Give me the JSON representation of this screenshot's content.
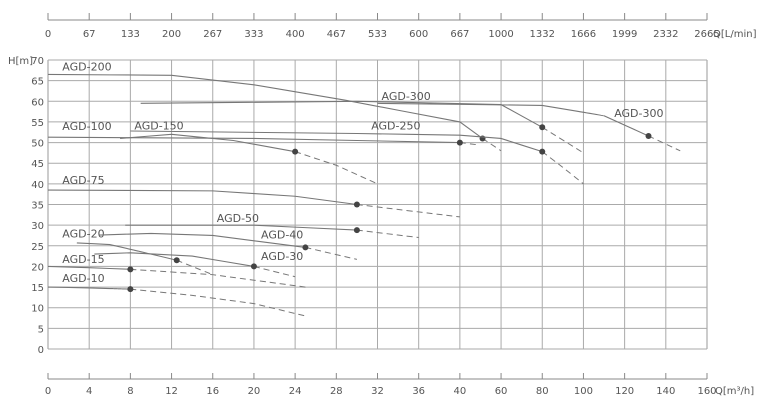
{
  "chart_data": {
    "type": "line",
    "title": "",
    "xlabel": "Q[m³/h]",
    "x2label": "Q[L/min]",
    "ylabel": "H[m]",
    "xticks": [
      0,
      4,
      8,
      12,
      16,
      20,
      24,
      28,
      32,
      36,
      40,
      60,
      80,
      100,
      120,
      140,
      160
    ],
    "xticks_top": [
      "0",
      "67",
      "133",
      "200",
      "267",
      "333",
      "400",
      "467",
      "533",
      "600",
      "667",
      "1000",
      "1332",
      "1666",
      "1999",
      "2332",
      "2665"
    ],
    "yticks": [
      0,
      5,
      10,
      15,
      20,
      25,
      30,
      35,
      40,
      45,
      50,
      55,
      60,
      65,
      70
    ],
    "ylim": [
      0,
      70
    ],
    "x_scale": "piecewise-linear (0-40 step 4, 40-160 step 20)",
    "grid": true,
    "line_color": "#777777",
    "series": [
      {
        "name": "AGD-10",
        "solid": [
          [
            0,
            15
          ],
          [
            4,
            14.8
          ],
          [
            8,
            14.5
          ]
        ],
        "point": [
          8,
          14.5
        ],
        "dashed": [
          [
            8,
            14.5
          ],
          [
            14,
            13
          ],
          [
            20,
            11
          ],
          [
            25,
            8
          ]
        ],
        "label_at": [
          1,
          16.2
        ]
      },
      {
        "name": "AGD-15",
        "solid": [
          [
            0,
            20
          ],
          [
            4,
            19.7
          ],
          [
            8,
            19.3
          ]
        ],
        "point": [
          8,
          19.3
        ],
        "dashed": [
          [
            8,
            19.3
          ],
          [
            16,
            18
          ],
          [
            25,
            15
          ]
        ],
        "label_at": [
          1,
          20.8
        ]
      },
      {
        "name": "AGD-20",
        "solid": [
          [
            2.8,
            25.7
          ],
          [
            6,
            25.3
          ],
          [
            10,
            23
          ],
          [
            12.5,
            21.5
          ]
        ],
        "point": [
          12.5,
          21.5
        ],
        "dashed": [
          [
            12.5,
            21.5
          ],
          [
            14,
            20
          ],
          [
            16,
            18
          ]
        ],
        "label_at": [
          1,
          27
        ]
      },
      {
        "name": "AGD-30",
        "solid": [
          [
            4.5,
            23
          ],
          [
            8,
            23.3
          ],
          [
            14,
            22.5
          ],
          [
            20,
            20
          ]
        ],
        "point": [
          20,
          20
        ],
        "dashed": [
          [
            20,
            20
          ],
          [
            24,
            17.5
          ]
        ],
        "label_at": [
          20.3,
          21.5
        ]
      },
      {
        "name": "AGD-40",
        "solid": [
          [
            5,
            27.6
          ],
          [
            10,
            28
          ],
          [
            16,
            27.5
          ],
          [
            25,
            24.6
          ]
        ],
        "point": [
          25,
          24.6
        ],
        "dashed": [
          [
            25,
            24.6
          ],
          [
            30,
            21.7
          ]
        ],
        "label_at": [
          20.3,
          26.8
        ]
      },
      {
        "name": "AGD-50",
        "solid": [
          [
            7.5,
            30
          ],
          [
            20,
            30
          ],
          [
            30,
            28.8
          ]
        ],
        "point": [
          30,
          28.8
        ],
        "dashed": [
          [
            30,
            28.8
          ],
          [
            36,
            27
          ]
        ],
        "label_at": [
          16,
          30.8
        ]
      },
      {
        "name": "AGD-75",
        "solid": [
          [
            0,
            38.5
          ],
          [
            16,
            38.3
          ],
          [
            24,
            37
          ],
          [
            30,
            35
          ]
        ],
        "point": [
          30,
          35
        ],
        "dashed": [
          [
            30,
            35
          ],
          [
            40,
            32
          ]
        ],
        "label_at": [
          1,
          40
        ]
      },
      {
        "name": "AGD-100",
        "solid": [
          [
            0,
            51.3
          ],
          [
            20,
            51
          ],
          [
            40,
            50
          ]
        ],
        "point": [
          40,
          50
        ],
        "dashed": [
          [
            40,
            50
          ],
          [
            48,
            49.5
          ]
        ],
        "label_at": [
          1,
          53
        ]
      },
      {
        "name": "AGD-150",
        "solid": [
          [
            7,
            51
          ],
          [
            12,
            52
          ],
          [
            18,
            50.5
          ],
          [
            24,
            47.8
          ]
        ],
        "point": [
          24,
          47.8
        ],
        "dashed": [
          [
            24,
            47.8
          ],
          [
            28,
            44.5
          ],
          [
            32,
            40
          ]
        ],
        "label_at": [
          8,
          53.2
        ]
      },
      {
        "name": "AGD-200",
        "solid": [
          [
            0,
            66.5
          ],
          [
            12,
            66.3
          ],
          [
            20,
            64
          ],
          [
            28.8,
            60.3
          ],
          [
            40,
            55
          ],
          [
            51,
            51
          ]
        ],
        "point": [
          51,
          51
        ],
        "dashed": [
          [
            51,
            51
          ],
          [
            60,
            48
          ]
        ],
        "label_at": [
          1,
          67.5
        ]
      },
      {
        "name": "AGD-250",
        "solid": [
          [
            8,
            52.8
          ],
          [
            30,
            52.2
          ],
          [
            40,
            51.8
          ],
          [
            60,
            51
          ],
          [
            80,
            47.8
          ]
        ],
        "point": [
          80,
          47.8
        ],
        "dashed": [
          [
            80,
            47.8
          ],
          [
            90,
            44
          ],
          [
            100,
            40
          ]
        ],
        "label_at": [
          31,
          53.2
        ]
      },
      {
        "name": "AGD-300",
        "solid": [
          [
            9,
            59.5
          ],
          [
            30,
            60
          ],
          [
            60,
            59.2
          ],
          [
            80,
            53.7
          ]
        ],
        "point": [
          80,
          53.7
        ],
        "dashed": [
          [
            80,
            53.7
          ],
          [
            100,
            47.5
          ]
        ],
        "label_at": [
          32,
          60.3
        ]
      },
      {
        "name": "AGD-300",
        "solid": [
          [
            32,
            59.5
          ],
          [
            80,
            59
          ],
          [
            110,
            56.5
          ],
          [
            131.6,
            51.6
          ]
        ],
        "point": [
          131.6,
          51.6
        ],
        "dashed": [
          [
            131.6,
            51.6
          ],
          [
            147,
            48
          ]
        ],
        "label_at": [
          113,
          56.2
        ]
      }
    ]
  }
}
